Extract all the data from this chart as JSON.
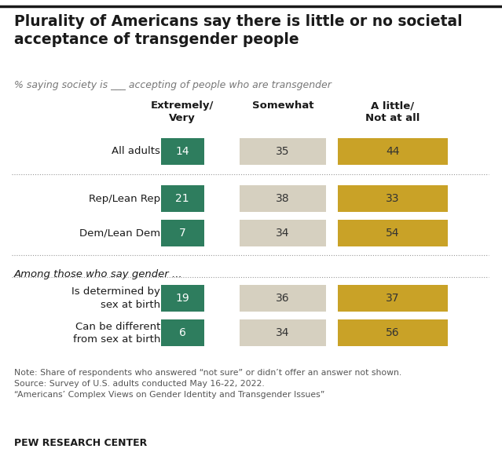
{
  "title": "Plurality of Americans say there is little or no societal\nacceptance of transgender people",
  "subtitle": "% saying society is ___ accepting of people who are transgender",
  "col_headers": [
    "Extremely/\nVery",
    "Somewhat",
    "A little/\nNot at all"
  ],
  "rows": [
    {
      "label": "All adults",
      "vals": [
        14,
        35,
        44
      ],
      "group": 0
    },
    {
      "label": "Rep/Lean Rep",
      "vals": [
        21,
        38,
        33
      ],
      "group": 1
    },
    {
      "label": "Dem/Lean Dem",
      "vals": [
        7,
        34,
        54
      ],
      "group": 1
    },
    {
      "label": "Is determined by\nsex at birth",
      "vals": [
        19,
        36,
        37
      ],
      "group": 2
    },
    {
      "label": "Can be different\nfrom sex at birth",
      "vals": [
        6,
        34,
        56
      ],
      "group": 2
    }
  ],
  "section_label": "Among those who say gender ...",
  "colors": [
    "#2e7d5e",
    "#d6d0c0",
    "#c9a227"
  ],
  "text_colors": [
    "#ffffff",
    "#333333",
    "#333333"
  ],
  "note": "Note: Share of respondents who answered “not sure” or didn’t offer an answer not shown.\nSource: Survey of U.S. adults conducted May 16-22, 2022.\n“Americans’ Complex Views on Gender Identity and Transgender Issues”",
  "footer": "PEW RESEARCH CENTER",
  "bg_color": "#ffffff",
  "title_color": "#1a1a1a",
  "subtitle_color": "#777777",
  "note_color": "#555555"
}
